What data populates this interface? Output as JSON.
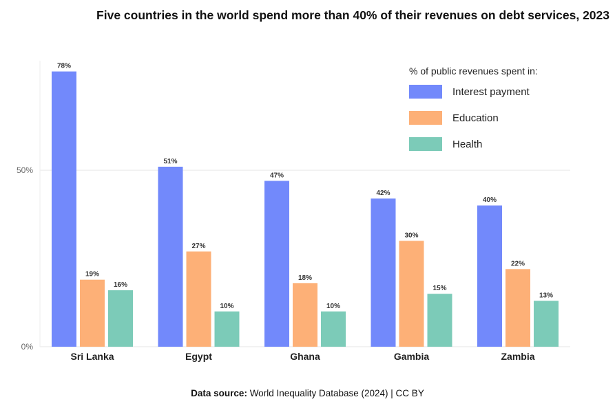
{
  "chart_data": {
    "type": "bar",
    "title": "Five countries in the world spend more than 40% of their revenues on debt services, 2023",
    "legend_title": "% of public revenues spent in:",
    "categories": [
      "Sri Lanka",
      "Egypt",
      "Ghana",
      "Gambia",
      "Zambia"
    ],
    "series": [
      {
        "name": "Interest payment",
        "color": "#7289fb",
        "values": [
          78,
          51,
          47,
          42,
          40
        ],
        "labels": [
          "78%",
          "51%",
          "47%",
          "42%",
          "40%"
        ]
      },
      {
        "name": "Education",
        "color": "#fdb077",
        "values": [
          19,
          27,
          18,
          30,
          22
        ],
        "labels": [
          "19%",
          "27%",
          "18%",
          "30%",
          "22%"
        ]
      },
      {
        "name": "Health",
        "color": "#7ccbb8",
        "values": [
          16,
          10,
          10,
          15,
          13
        ],
        "labels": [
          "16%",
          "10%",
          "10%",
          "15%",
          "13%"
        ]
      }
    ],
    "yticks": [
      0,
      50
    ],
    "ytick_labels": [
      "0%",
      "50%"
    ],
    "ylim": [
      0,
      82
    ],
    "grid": true,
    "legend_position": "top-right"
  },
  "source": {
    "label": "Data source:",
    "text": " World Inequality Database (2024) | CC BY"
  }
}
